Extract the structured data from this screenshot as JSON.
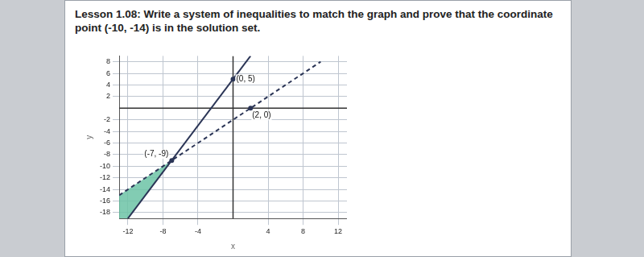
{
  "chart_data": {
    "type": "line",
    "title": "Lesson 1.08: Write a system of inequalities to match the graph and prove that the coordinate point (-10, -14) is in the solution set.",
    "x_label": "x",
    "y_label": "y",
    "xlim": [
      -13,
      13
    ],
    "ylim": [
      -19,
      9
    ],
    "xticks": [
      -12,
      -8,
      -4,
      4,
      8,
      12
    ],
    "yticks": [
      -18,
      -16,
      -14,
      -12,
      -10,
      -8,
      -6,
      -4,
      -2,
      2,
      4,
      6,
      8
    ],
    "grid": true,
    "series": [
      {
        "type": "line",
        "x": [
          -12,
          2
        ],
        "values": [
          -19,
          9
        ],
        "color": "#2b3556",
        "line_style": "solid"
      },
      {
        "type": "line",
        "x": [
          -13,
          10
        ],
        "values": [
          -15,
          8
        ],
        "color": "#2b3556",
        "line_style": "dashed"
      },
      {
        "type": "area",
        "x": [
          -13,
          -7,
          -12,
          -13
        ],
        "values": [
          -15,
          -9,
          -19,
          -19
        ],
        "color": "#6cc3a6"
      }
    ],
    "annotations": [
      {
        "text": "(0, 5)",
        "x": 0,
        "y": 5
      },
      {
        "text": "(2, 0)",
        "x": 2,
        "y": 0
      },
      {
        "text": "(-7, -9)",
        "x": -7,
        "y": -9
      }
    ]
  }
}
